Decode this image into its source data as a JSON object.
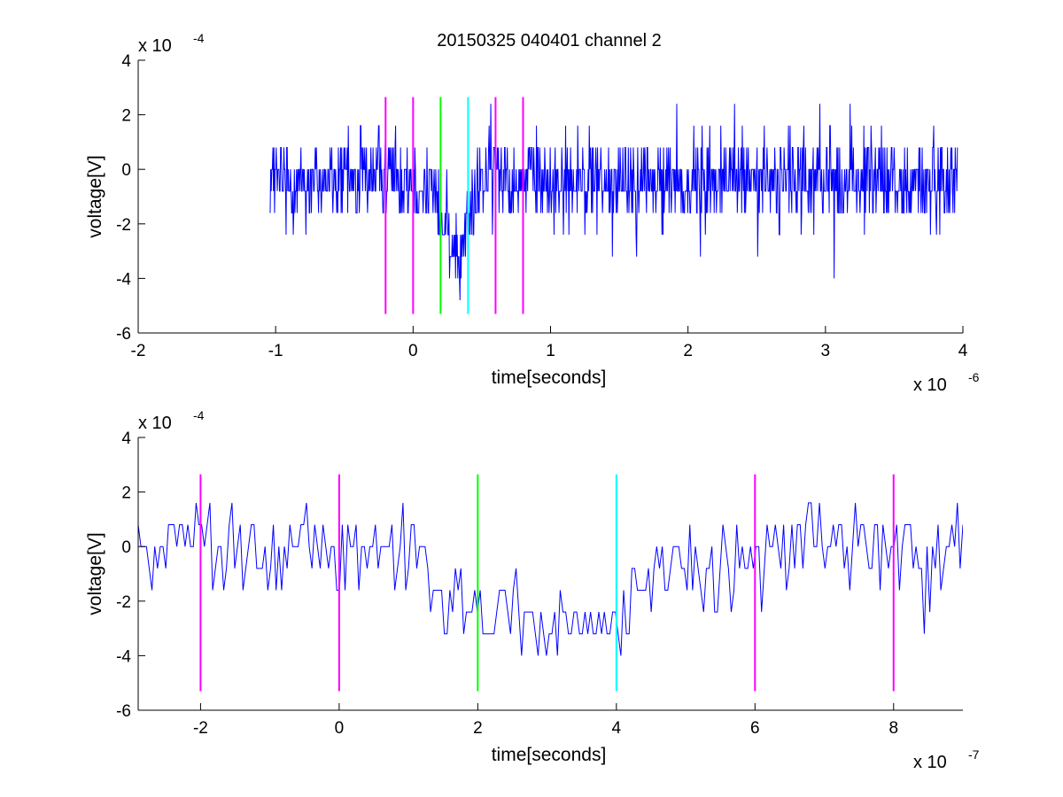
{
  "figure": {
    "title": "20150325 040401 channel 2"
  },
  "chart_data": [
    {
      "type": "line",
      "title": "20150325 040401 channel 2",
      "xlabel": "time[seconds]",
      "ylabel": "voltage[V]",
      "x_exponent_label": "x 10",
      "x_exponent": "-6",
      "y_exponent_label": "x 10",
      "y_exponent": "-4",
      "xlim": [
        -2,
        4
      ],
      "ylim": [
        -6,
        4
      ],
      "xticks": [
        -2,
        -1,
        0,
        1,
        2,
        3,
        4
      ],
      "yticks": [
        -6,
        -4,
        -2,
        0,
        2,
        4
      ],
      "grid": false,
      "signal": {
        "color": "#0000ff",
        "x_start": -1.04,
        "x_end": 3.96,
        "n_points": 1250,
        "quantization_step": 0.8,
        "description_points": [
          [
            -1.04,
            -0.4
          ],
          [
            -0.8,
            -0.4
          ],
          [
            -0.4,
            -0.4
          ],
          [
            -0.2,
            0.2
          ],
          [
            0.0,
            -0.3
          ],
          [
            0.15,
            -0.8
          ],
          [
            0.2,
            -2.0
          ],
          [
            0.3,
            -2.6
          ],
          [
            0.35,
            -3.0
          ],
          [
            0.4,
            -1.8
          ],
          [
            0.45,
            -1.0
          ],
          [
            0.5,
            -0.3
          ],
          [
            0.6,
            0.2
          ],
          [
            0.8,
            -0.3
          ],
          [
            1.0,
            -0.6
          ],
          [
            1.5,
            -0.3
          ],
          [
            2.0,
            -0.5
          ],
          [
            2.5,
            -0.2
          ],
          [
            3.0,
            -0.4
          ],
          [
            3.5,
            -0.6
          ],
          [
            3.96,
            -0.5
          ]
        ]
      },
      "markers": [
        {
          "x": -0.2,
          "color": "#ff00ff"
        },
        {
          "x": 0.0,
          "color": "#ff00ff"
        },
        {
          "x": 0.2,
          "color": "#00ff00"
        },
        {
          "x": 0.4,
          "color": "#00ffff"
        },
        {
          "x": 0.6,
          "color": "#ff00ff"
        },
        {
          "x": 0.8,
          "color": "#ff00ff"
        }
      ],
      "marker_range": [
        -5.3,
        2.65
      ]
    },
    {
      "type": "line",
      "title": "",
      "xlabel": "time[seconds]",
      "ylabel": "voltage[V]",
      "x_exponent_label": "x 10",
      "x_exponent": "-7",
      "y_exponent_label": "x 10",
      "y_exponent": "-4",
      "xlim": [
        -2.9,
        9.0
      ],
      "ylim": [
        -6,
        4
      ],
      "xticks": [
        -2,
        0,
        2,
        4,
        6,
        8
      ],
      "yticks": [
        -6,
        -4,
        -2,
        0,
        2,
        4
      ],
      "grid": false,
      "signal": {
        "color": "#0000ff",
        "x_start": -2.9,
        "x_end": 9.0,
        "n_points": 300,
        "quantization_step": 0.8,
        "description_points": [
          [
            -2.9,
            -0.2
          ],
          [
            -2.0,
            0.4
          ],
          [
            -1.5,
            0.2
          ],
          [
            -1.0,
            -0.8
          ],
          [
            -0.5,
            0.0
          ],
          [
            0.0,
            0.0
          ],
          [
            0.5,
            -0.3
          ],
          [
            1.0,
            -0.2
          ],
          [
            1.35,
            -1.0
          ],
          [
            1.5,
            -1.5
          ],
          [
            1.8,
            -2.0
          ],
          [
            2.0,
            -1.6
          ],
          [
            2.3,
            -2.3
          ],
          [
            2.6,
            -2.4
          ],
          [
            2.9,
            -3.0
          ],
          [
            3.2,
            -2.6
          ],
          [
            3.5,
            -2.2
          ],
          [
            3.8,
            -2.5
          ],
          [
            4.05,
            -3.0
          ],
          [
            4.3,
            -1.8
          ],
          [
            4.6,
            -1.0
          ],
          [
            5.0,
            -0.8
          ],
          [
            5.5,
            -0.6
          ],
          [
            6.0,
            -0.6
          ],
          [
            6.5,
            0.0
          ],
          [
            7.0,
            0.0
          ],
          [
            7.5,
            0.2
          ],
          [
            8.0,
            -0.2
          ],
          [
            8.5,
            -0.4
          ],
          [
            9.0,
            -0.2
          ]
        ]
      },
      "markers": [
        {
          "x": -2,
          "color": "#ff00ff"
        },
        {
          "x": 0,
          "color": "#ff00ff"
        },
        {
          "x": 2,
          "color": "#00ff00"
        },
        {
          "x": 4,
          "color": "#00ffff"
        },
        {
          "x": 6,
          "color": "#ff00ff"
        },
        {
          "x": 8,
          "color": "#ff00ff"
        }
      ],
      "marker_range": [
        -5.3,
        2.65
      ]
    }
  ]
}
